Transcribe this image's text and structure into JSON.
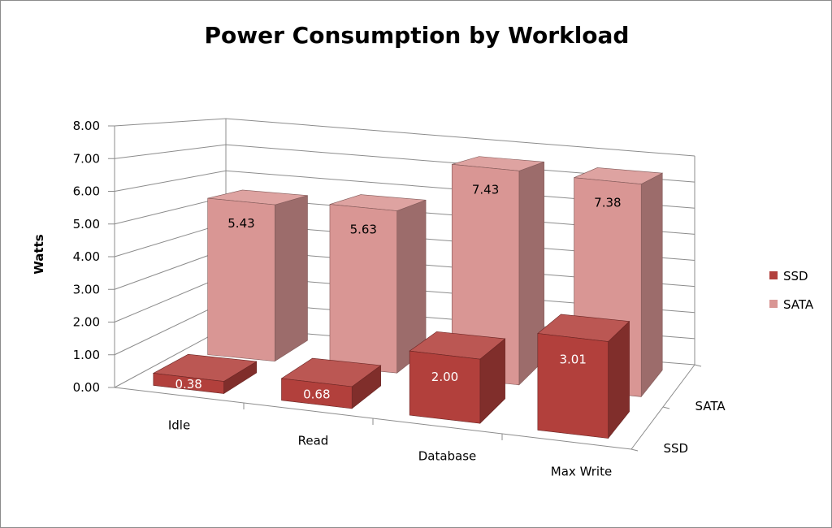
{
  "chart_data": {
    "type": "bar",
    "subtype": "3d-clustered-depth",
    "title": "Power Consumption by Workload",
    "ylabel": "Watts",
    "xlabel": "",
    "ylim": [
      0,
      8
    ],
    "yticks": [
      "0.00",
      "1.00",
      "2.00",
      "3.00",
      "4.00",
      "5.00",
      "6.00",
      "7.00",
      "8.00"
    ],
    "categories": [
      "Idle",
      "Read",
      "Database",
      "Max Write"
    ],
    "depth_labels": [
      "SATA",
      "SSD"
    ],
    "series": [
      {
        "name": "SSD",
        "values": [
          0.38,
          0.68,
          2.0,
          3.01
        ],
        "labels": [
          "0.38",
          "0.68",
          "2.00",
          "3.01"
        ],
        "color": "#b2403c"
      },
      {
        "name": "SATA",
        "values": [
          5.43,
          5.63,
          7.43,
          7.38
        ],
        "labels": [
          "5.43",
          "5.63",
          "7.43",
          "7.38"
        ],
        "color": "#d99694"
      }
    ],
    "grid": true,
    "legend_position": "right"
  }
}
